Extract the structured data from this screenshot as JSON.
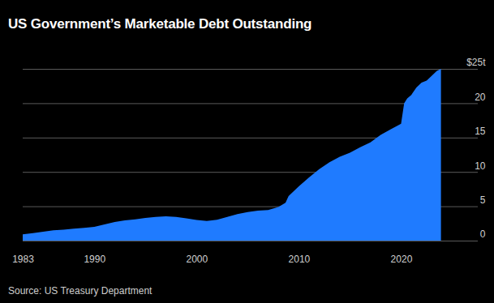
{
  "chart_data": {
    "type": "area",
    "title": "US Government’s Marketable Debt Outstanding",
    "source": "Source: US Treasury Department",
    "x": [
      1983,
      1984,
      1985,
      1986,
      1987,
      1988,
      1989,
      1990,
      1991,
      1992,
      1993,
      1994,
      1995,
      1996,
      1997,
      1998,
      1999,
      2000,
      2001,
      2002,
      2003,
      2004,
      2005,
      2006,
      2007,
      2008,
      2008.7,
      2009,
      2010,
      2011,
      2012,
      2013,
      2014,
      2015,
      2016,
      2017,
      2018,
      2019,
      2020,
      2020.3,
      2020.6,
      2021,
      2021.5,
      2022,
      2022.5,
      2023,
      2023.5,
      2023.9
    ],
    "values": [
      0.9,
      1.1,
      1.3,
      1.5,
      1.6,
      1.75,
      1.85,
      2.0,
      2.35,
      2.7,
      2.95,
      3.1,
      3.3,
      3.45,
      3.55,
      3.45,
      3.25,
      3.0,
      2.85,
      3.05,
      3.45,
      3.85,
      4.15,
      4.35,
      4.45,
      4.9,
      5.5,
      6.5,
      7.9,
      9.2,
      10.4,
      11.4,
      12.2,
      12.8,
      13.6,
      14.3,
      15.4,
      16.2,
      17.0,
      20.0,
      20.7,
      21.2,
      22.3,
      23.0,
      23.3,
      24.0,
      24.7,
      25.0
    ],
    "color": "#1f7bff",
    "xlim": [
      1983,
      2027.5
    ],
    "xticks": [
      1983,
      1990,
      2000,
      2010,
      2020
    ],
    "ylim": [
      0,
      25
    ],
    "yticks": [
      0,
      5,
      10,
      15,
      20,
      {
        "value": 25,
        "label": "$25t"
      }
    ],
    "grid": true
  }
}
